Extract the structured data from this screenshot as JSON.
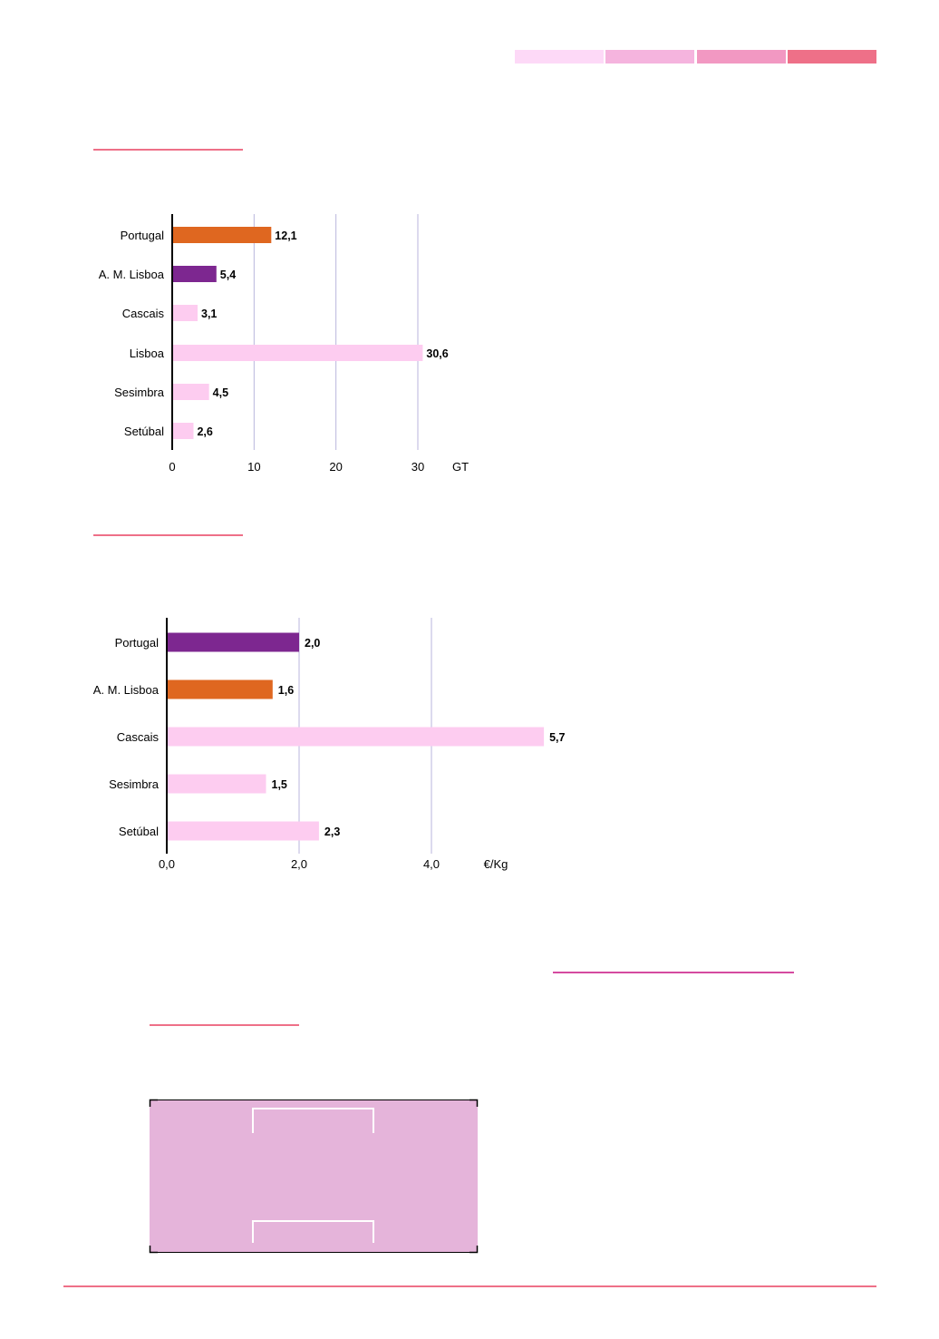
{
  "colors": {
    "header_segments": [
      "#fdd9f7",
      "#f5b4de",
      "#f298c2",
      "#ee7088"
    ],
    "rule": "#ee7088",
    "rule_magenta": "#d54aa0",
    "orange": "#df6720",
    "purple": "#7d2790",
    "pink": "#fdccf0",
    "grid": "#b9b6dd",
    "panel": "#e5b4da"
  },
  "chart_data": [
    {
      "type": "bar",
      "orientation": "horizontal",
      "categories": [
        "Portugal",
        "A. M. Lisboa",
        "Cascais",
        "Lisboa",
        "Sesimbra",
        "Setúbal"
      ],
      "values": [
        12.1,
        5.4,
        3.1,
        30.6,
        4.5,
        2.6
      ],
      "value_labels": [
        "12,1",
        "5,4",
        "3,1",
        "30,6",
        "4,5",
        "2,6"
      ],
      "bar_colors": [
        "orange",
        "purple",
        "pink",
        "pink",
        "pink",
        "pink"
      ],
      "xlim": [
        0,
        30
      ],
      "x_ticks": [
        "0",
        "10",
        "20",
        "30"
      ],
      "x_unit": "GT",
      "grid": true
    },
    {
      "type": "bar",
      "orientation": "horizontal",
      "categories": [
        "Portugal",
        "A. M. Lisboa",
        "Cascais",
        "Sesimbra",
        "Setúbal"
      ],
      "values": [
        2.0,
        1.6,
        5.7,
        1.5,
        2.3
      ],
      "value_labels": [
        "2,0",
        "1,6",
        "5,7",
        "1,5",
        "2,3"
      ],
      "bar_colors": [
        "purple",
        "orange",
        "pink",
        "pink",
        "pink"
      ],
      "xlim": [
        0,
        4
      ],
      "x_ticks": [
        "0,0",
        "2,0",
        "4,0"
      ],
      "x_unit": "€/Kg",
      "grid": true
    }
  ]
}
